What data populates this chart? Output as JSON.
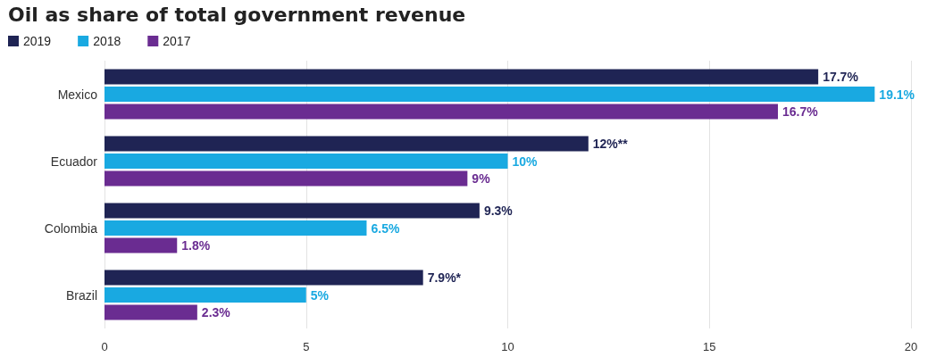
{
  "chart_data": {
    "type": "bar",
    "orientation": "horizontal",
    "title": "Oil as share of total government revenue",
    "categories": [
      "Mexico",
      "Ecuador",
      "Colombia",
      "Brazil"
    ],
    "series": [
      {
        "name": "2019",
        "color": "#1f2454",
        "values": [
          17.7,
          12,
          9.3,
          7.9
        ],
        "value_labels": [
          "17.7%",
          "12%**",
          "9.3%",
          "7.9%*"
        ]
      },
      {
        "name": "2018",
        "color": "#19a9e1",
        "values": [
          19.1,
          10,
          6.5,
          5
        ],
        "value_labels": [
          "19.1%",
          "10%",
          "6.5%",
          "5%"
        ]
      },
      {
        "name": "2017",
        "color": "#6a2c91",
        "values": [
          16.7,
          9,
          1.8,
          2.3
        ],
        "value_labels": [
          "16.7%",
          "9%",
          "1.8%",
          "2.3%"
        ]
      }
    ],
    "xlim": [
      0,
      20
    ],
    "xticks": [
      0,
      5,
      10,
      15,
      20
    ],
    "grid": "x",
    "legend": "top left"
  }
}
